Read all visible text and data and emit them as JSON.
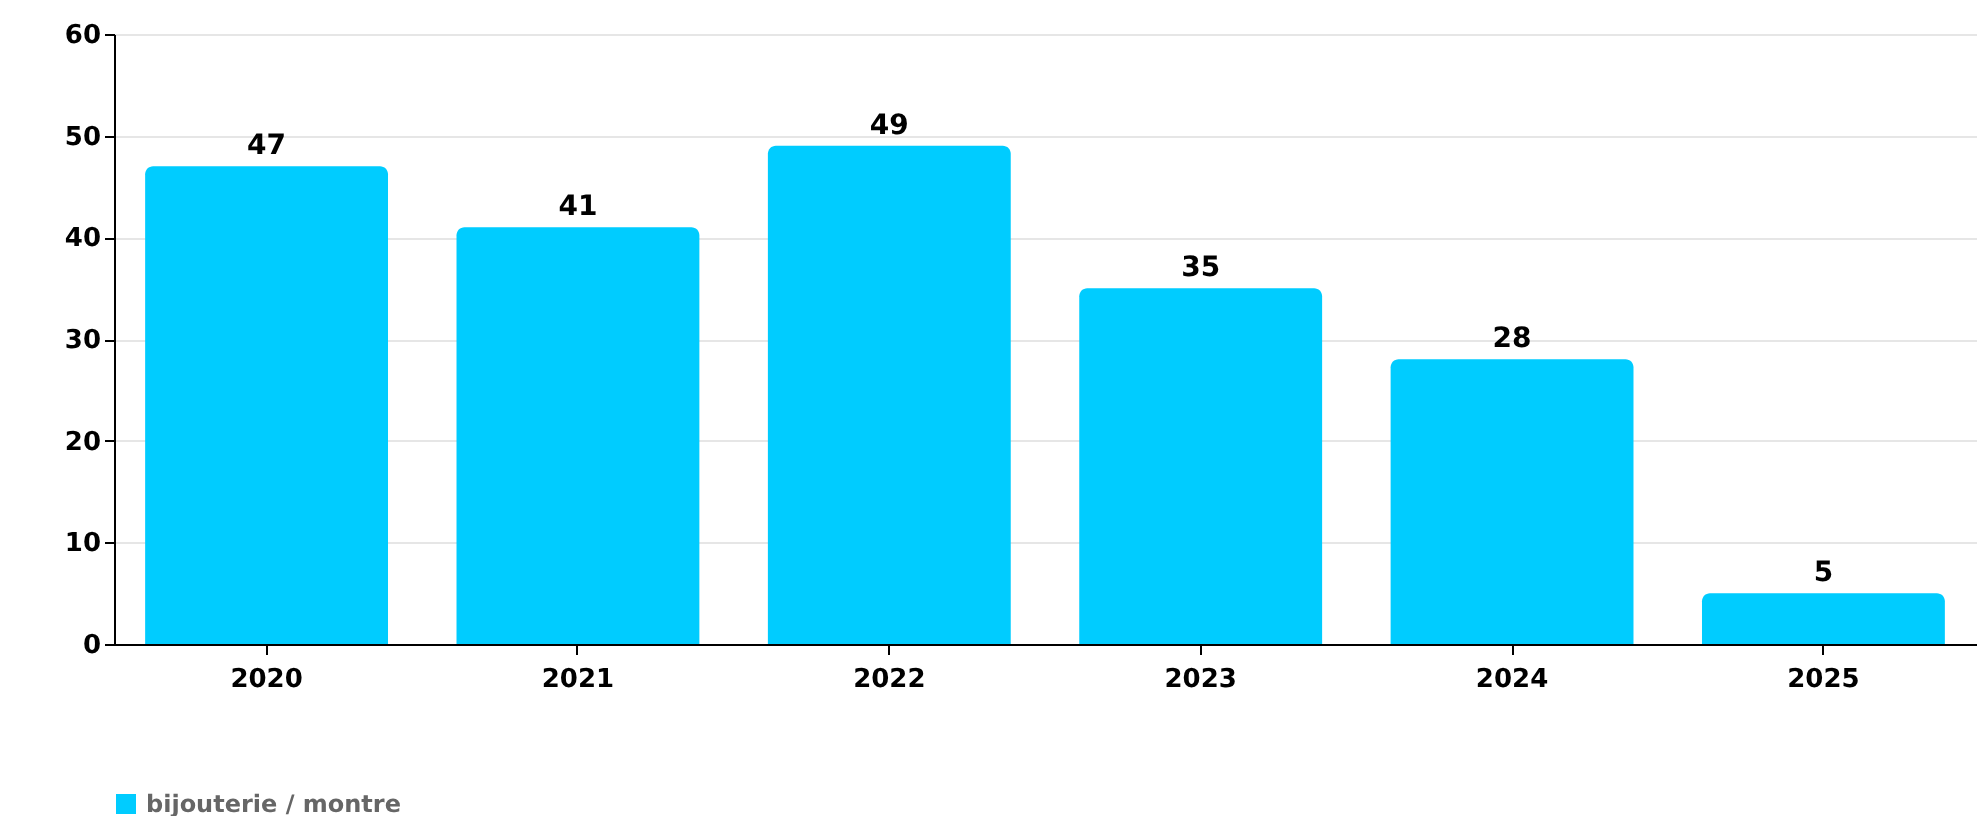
{
  "chart_data": {
    "type": "bar",
    "categories": [
      "2020",
      "2021",
      "2022",
      "2023",
      "2024",
      "2025"
    ],
    "series": [
      {
        "name": "bijouterie / montre",
        "color": "#00ccff",
        "values": [
          47,
          41,
          49,
          35,
          28,
          5
        ]
      }
    ],
    "ylim": [
      0,
      60
    ],
    "yticks": [
      0,
      10,
      20,
      30,
      40,
      50,
      60
    ],
    "grid": "y",
    "legend": "bottom",
    "data_labels": true
  }
}
